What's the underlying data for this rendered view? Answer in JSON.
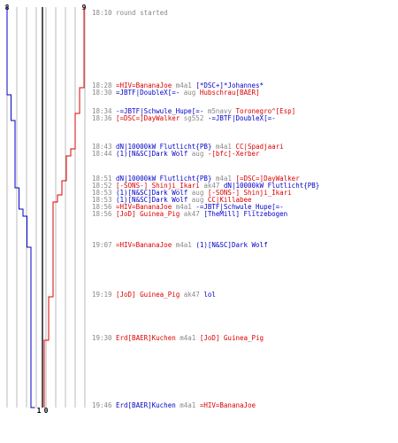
{
  "colors": {
    "blue": "#0000cc",
    "red": "#dd0000",
    "grid": "#bbbbbb",
    "center": "#555555",
    "text": "#888888"
  },
  "scores": {
    "blue_start": "8",
    "red_start": "9",
    "blue_end": "1",
    "red_end": "0"
  },
  "events": [
    {
      "time": "18:10",
      "segs": [
        {
          "t": "round started",
          "c": "text"
        }
      ]
    },
    {
      "time": "18:28",
      "segs": [
        {
          "t": "=HIV=BananaJoe",
          "c": "red"
        },
        {
          "t": " m4a1 ",
          "c": "text"
        },
        {
          "t": "[*DSC+]*Johannes*",
          "c": "blue"
        }
      ]
    },
    {
      "time": "18:30",
      "segs": [
        {
          "t": "=JBTF|DoubleX[=-",
          "c": "blue"
        },
        {
          "t": " aug ",
          "c": "text"
        },
        {
          "t": "Hubschrau[BAER]",
          "c": "red"
        }
      ]
    },
    {
      "time": "18:34",
      "segs": [
        {
          "t": "-=JBTF|Schwule_Hupe[=-",
          "c": "blue"
        },
        {
          "t": " m5navy ",
          "c": "text"
        },
        {
          "t": "Toronegro^[Esp]",
          "c": "red"
        }
      ]
    },
    {
      "time": "18:36",
      "segs": [
        {
          "t": "[=DSC=]DayWalker",
          "c": "red"
        },
        {
          "t": " sg552 ",
          "c": "text"
        },
        {
          "t": "-=JBTF|DoubleX[=-",
          "c": "blue"
        }
      ]
    },
    {
      "time": "18:43",
      "segs": [
        {
          "t": "dN|10000kW Flutlicht{PB}",
          "c": "blue"
        },
        {
          "t": " m4a1 ",
          "c": "text"
        },
        {
          "t": "CC|Spadjaari",
          "c": "red"
        }
      ]
    },
    {
      "time": "18:44",
      "segs": [
        {
          "t": "(1)[N&SC]Dark Wolf",
          "c": "blue"
        },
        {
          "t": " aug ",
          "c": "text"
        },
        {
          "t": "-[bfc]-Xerber",
          "c": "red"
        }
      ]
    },
    {
      "time": "18:51",
      "segs": [
        {
          "t": "dN|10000kW Flutlicht{PB}",
          "c": "blue"
        },
        {
          "t": " m4a1 ",
          "c": "text"
        },
        {
          "t": "[=DSC=]DayWalker",
          "c": "red"
        }
      ]
    },
    {
      "time": "18:52",
      "segs": [
        {
          "t": "[-SONS-] Shinji_Ikari",
          "c": "red"
        },
        {
          "t": " ak47 ",
          "c": "text"
        },
        {
          "t": "dN|10000kW Flutlicht{PB}",
          "c": "blue"
        }
      ]
    },
    {
      "time": "18:53",
      "segs": [
        {
          "t": "(1)[N&SC]Dark Wolf",
          "c": "blue"
        },
        {
          "t": " aug ",
          "c": "text"
        },
        {
          "t": "[-SONS-] Shinji_Ikari",
          "c": "red"
        }
      ]
    },
    {
      "time": "18:53",
      "segs": [
        {
          "t": "(1)[N&SC]Dark Wolf",
          "c": "blue"
        },
        {
          "t": " aug ",
          "c": "text"
        },
        {
          "t": "CC|Killabee",
          "c": "red"
        }
      ]
    },
    {
      "time": "18:56",
      "segs": [
        {
          "t": "=HIV=BananaJoe",
          "c": "red"
        },
        {
          "t": " m4a1 ",
          "c": "text"
        },
        {
          "t": "-=JBTF|Schwule_Hupe[=-",
          "c": "blue"
        }
      ]
    },
    {
      "time": "18:56",
      "segs": [
        {
          "t": "[JoD] Guinea_Pig",
          "c": "red"
        },
        {
          "t": " ak47 ",
          "c": "text"
        },
        {
          "t": "[TheMill] Flitzebogen",
          "c": "blue"
        }
      ]
    },
    {
      "time": "19:07",
      "segs": [
        {
          "t": "=HIV=BananaJoe",
          "c": "red"
        },
        {
          "t": " m4a1 ",
          "c": "text"
        },
        {
          "t": "(1)[N&SC]Dark Wolf",
          "c": "blue"
        }
      ]
    },
    {
      "time": "19:19",
      "segs": [
        {
          "t": "[JoD] Guinea_Pig",
          "c": "red"
        },
        {
          "t": " ak47 ",
          "c": "text"
        },
        {
          "t": "lol",
          "c": "blue"
        }
      ]
    },
    {
      "time": "19:30",
      "segs": [
        {
          "t": "Erd[BAER]Kuchen",
          "c": "red"
        },
        {
          "t": " m4a1 ",
          "c": "text"
        },
        {
          "t": "[JoD] Guinea_Pig",
          "c": "red"
        }
      ]
    },
    {
      "time": "19:46",
      "segs": [
        {
          "t": "Erd[BAER]Kuchen",
          "c": "blue"
        },
        {
          "t": " m4a1 ",
          "c": "text"
        },
        {
          "t": "=HIV=BananaJoe",
          "c": "red"
        }
      ]
    }
  ],
  "blue_alive": [
    8,
    8,
    8,
    7,
    7,
    6,
    6,
    6,
    6,
    5,
    5,
    5,
    4,
    3,
    2,
    2,
    2,
    1
  ],
  "red_alive": [
    9,
    9,
    8,
    8,
    7,
    7,
    6,
    5,
    4,
    4,
    3,
    2,
    2,
    2,
    2,
    1,
    0,
    0
  ]
}
